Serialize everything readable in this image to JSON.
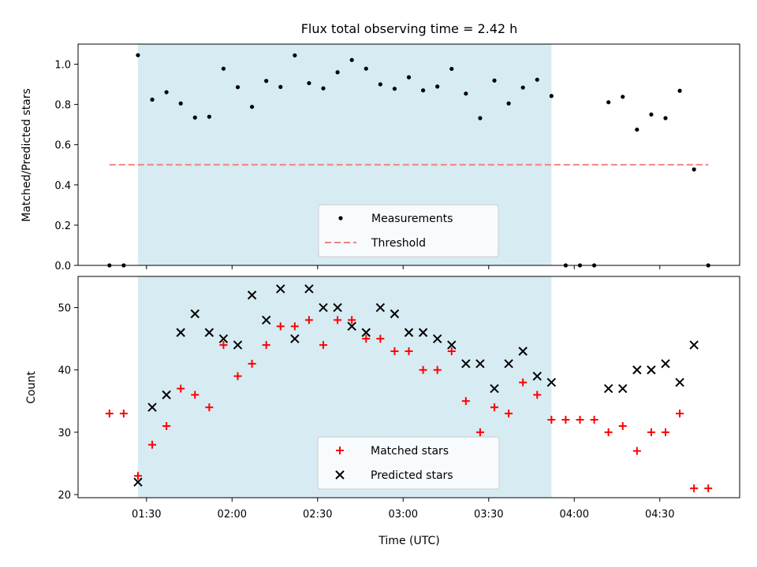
{
  "chart_data": {
    "title": "Flux total observing time = 2.42 h",
    "xlabel": "Time (UTC)",
    "x_tick_labels": [
      "01:30",
      "02:00",
      "02:30",
      "03:00",
      "03:30",
      "04:00",
      "04:30"
    ],
    "x_tick_values": [
      "01:30",
      "02:00",
      "02:30",
      "03:00",
      "03:30",
      "04:00",
      "04:30"
    ],
    "xlim": [
      "01:06",
      "04:58"
    ],
    "shaded_interval": [
      "01:27",
      "03:52"
    ],
    "shaded_color": "#add8e6",
    "panels": [
      {
        "type": "scatter",
        "ylabel": "Matched/Predicted stars",
        "ylim": [
          0,
          1.1
        ],
        "y_ticks": [
          "0.0",
          "0.2",
          "0.4",
          "0.6",
          "0.8",
          "1.0"
        ],
        "legend_position": "lower-center",
        "series": [
          {
            "name": "Measurements",
            "marker": "dot",
            "color": "#000000",
            "points": [
              [
                "01:17",
                0.0
              ],
              [
                "01:22",
                0.0
              ],
              [
                "01:27",
                1.045
              ],
              [
                "01:32",
                0.824
              ],
              [
                "01:37",
                0.861
              ],
              [
                "01:42",
                0.805
              ],
              [
                "01:47",
                0.735
              ],
              [
                "01:52",
                0.739
              ],
              [
                "01:57",
                0.978
              ],
              [
                "02:02",
                0.886
              ],
              [
                "02:07",
                0.788
              ],
              [
                "02:12",
                0.917
              ],
              [
                "02:17",
                0.887
              ],
              [
                "02:22",
                1.044
              ],
              [
                "02:27",
                0.906
              ],
              [
                "02:32",
                0.88
              ],
              [
                "02:37",
                0.96
              ],
              [
                "02:42",
                1.021
              ],
              [
                "02:47",
                0.978
              ],
              [
                "02:52",
                0.9
              ],
              [
                "02:57",
                0.878
              ],
              [
                "03:02",
                0.935
              ],
              [
                "03:07",
                0.87
              ],
              [
                "03:12",
                0.889
              ],
              [
                "03:17",
                0.977
              ],
              [
                "03:22",
                0.854
              ],
              [
                "03:27",
                0.732
              ],
              [
                "03:32",
                0.919
              ],
              [
                "03:37",
                0.805
              ],
              [
                "03:42",
                0.884
              ],
              [
                "03:47",
                0.923
              ],
              [
                "03:52",
                0.842
              ],
              [
                "03:57",
                0.0
              ],
              [
                "04:02",
                0.0
              ],
              [
                "04:07",
                0.0
              ],
              [
                "04:12",
                0.811
              ],
              [
                "04:17",
                0.838
              ],
              [
                "04:22",
                0.675
              ],
              [
                "04:27",
                0.75
              ],
              [
                "04:32",
                0.732
              ],
              [
                "04:37",
                0.868
              ],
              [
                "04:42",
                0.477
              ],
              [
                "04:47",
                0.0
              ]
            ]
          },
          {
            "name": "Threshold",
            "marker": "dashed-line",
            "color": "#f08080",
            "points": [
              [
                "01:17",
                0.5
              ],
              [
                "04:47",
                0.5
              ]
            ]
          }
        ]
      },
      {
        "type": "scatter",
        "ylabel": "Count",
        "ylim": [
          19.5,
          55
        ],
        "y_ticks": [
          "20",
          "30",
          "40",
          "50"
        ],
        "legend_position": "lower-center",
        "series": [
          {
            "name": "Matched stars",
            "marker": "plus",
            "color": "#ff0000",
            "points": [
              [
                "01:17",
                33
              ],
              [
                "01:22",
                33
              ],
              [
                "01:27",
                23
              ],
              [
                "01:32",
                28
              ],
              [
                "01:37",
                31
              ],
              [
                "01:42",
                37
              ],
              [
                "01:47",
                36
              ],
              [
                "01:52",
                34
              ],
              [
                "01:57",
                44
              ],
              [
                "02:02",
                39
              ],
              [
                "02:07",
                41
              ],
              [
                "02:12",
                44
              ],
              [
                "02:17",
                47
              ],
              [
                "02:22",
                47
              ],
              [
                "02:27",
                48
              ],
              [
                "02:32",
                44
              ],
              [
                "02:37",
                48
              ],
              [
                "02:42",
                48
              ],
              [
                "02:47",
                45
              ],
              [
                "02:52",
                45
              ],
              [
                "02:57",
                43
              ],
              [
                "03:02",
                43
              ],
              [
                "03:07",
                40
              ],
              [
                "03:12",
                40
              ],
              [
                "03:17",
                43
              ],
              [
                "03:22",
                35
              ],
              [
                "03:27",
                30
              ],
              [
                "03:32",
                34
              ],
              [
                "03:37",
                33
              ],
              [
                "03:42",
                38
              ],
              [
                "03:47",
                36
              ],
              [
                "03:52",
                32
              ],
              [
                "03:57",
                32
              ],
              [
                "04:02",
                32
              ],
              [
                "04:07",
                32
              ],
              [
                "04:12",
                30
              ],
              [
                "04:17",
                31
              ],
              [
                "04:22",
                27
              ],
              [
                "04:27",
                30
              ],
              [
                "04:32",
                30
              ],
              [
                "04:37",
                33
              ],
              [
                "04:42",
                21
              ],
              [
                "04:47",
                21
              ]
            ]
          },
          {
            "name": "Predicted stars",
            "marker": "x",
            "color": "#000000",
            "points": [
              [
                "01:27",
                22
              ],
              [
                "01:32",
                34
              ],
              [
                "01:37",
                36
              ],
              [
                "01:42",
                46
              ],
              [
                "01:47",
                49
              ],
              [
                "01:52",
                46
              ],
              [
                "01:57",
                45
              ],
              [
                "02:02",
                44
              ],
              [
                "02:07",
                52
              ],
              [
                "02:12",
                48
              ],
              [
                "02:17",
                53
              ],
              [
                "02:22",
                45
              ],
              [
                "02:27",
                53
              ],
              [
                "02:32",
                50
              ],
              [
                "02:37",
                50
              ],
              [
                "02:42",
                47
              ],
              [
                "02:47",
                46
              ],
              [
                "02:52",
                50
              ],
              [
                "02:57",
                49
              ],
              [
                "03:02",
                46
              ],
              [
                "03:07",
                46
              ],
              [
                "03:12",
                45
              ],
              [
                "03:17",
                44
              ],
              [
                "03:22",
                41
              ],
              [
                "03:27",
                41
              ],
              [
                "03:32",
                37
              ],
              [
                "03:37",
                41
              ],
              [
                "03:42",
                43
              ],
              [
                "03:47",
                39
              ],
              [
                "03:52",
                38
              ],
              [
                "04:12",
                37
              ],
              [
                "04:17",
                37
              ],
              [
                "04:22",
                40
              ],
              [
                "04:27",
                40
              ],
              [
                "04:32",
                41
              ],
              [
                "04:37",
                38
              ],
              [
                "04:42",
                44
              ]
            ]
          }
        ]
      }
    ]
  }
}
